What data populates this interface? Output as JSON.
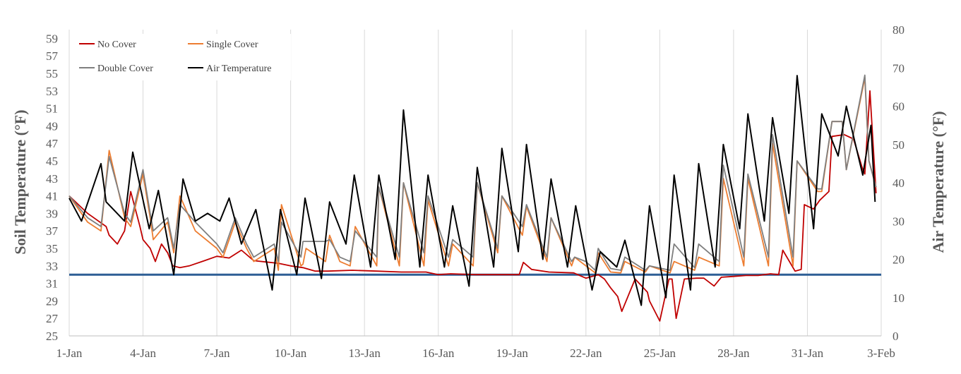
{
  "chart_data": {
    "type": "line",
    "title": "",
    "ylabel": "Soil Temperature (°F)",
    "y2label": "Air Temperature (°F)",
    "xlabel": "",
    "xlim": [
      "2024-01-01",
      "2024-02-03"
    ],
    "ylim": [
      25,
      60
    ],
    "y2lim": [
      0,
      80
    ],
    "x_tick_labels": [
      "1-Jan",
      "4-Jan",
      "7-Jan",
      "10-Jan",
      "13-Jan",
      "16-Jan",
      "19-Jan",
      "22-Jan",
      "25-Jan",
      "28-Jan",
      "31-Jan",
      "3-Feb"
    ],
    "y_tick_labels": [
      "25",
      "27",
      "29",
      "31",
      "33",
      "35",
      "37",
      "39",
      "41",
      "43",
      "45",
      "47",
      "49",
      "51",
      "53",
      "55",
      "57",
      "59"
    ],
    "y2_tick_labels": [
      "0",
      "10",
      "20",
      "30",
      "40",
      "50",
      "60",
      "70",
      "80"
    ],
    "grid": "vertical",
    "legend_position": "top-left",
    "reference_line": {
      "y": 32,
      "color": "#2e5f95"
    },
    "series": [
      {
        "name": "No Cover",
        "axis": "left",
        "color": "#c00000",
        "x": [
          "2024-01-01T00:00",
          "2024-01-01T18:00",
          "2024-01-02T12:00",
          "2024-01-02T15:00",
          "2024-01-02T23:00",
          "2024-01-03T06:00",
          "2024-01-03T12:00",
          "2024-01-03T21:00",
          "2024-01-04T00:00",
          "2024-01-04T07:00",
          "2024-01-04T12:00",
          "2024-01-04T18:00",
          "2024-01-05T00:00",
          "2024-01-05T05:00",
          "2024-01-05T12:00",
          "2024-01-05T21:00",
          "2024-01-06T12:00",
          "2024-01-07T00:00",
          "2024-01-07T12:00",
          "2024-01-08T00:00",
          "2024-01-08T12:00",
          "2024-01-09T12:00",
          "2024-01-10T00:00",
          "2024-01-10T12:00",
          "2024-01-11T00:00",
          "2024-01-11T12:00",
          "2024-01-12T12:00",
          "2024-01-13T12:00",
          "2024-01-14T12:00",
          "2024-01-15T12:00",
          "2024-01-16T00:00",
          "2024-01-16T12:00",
          "2024-01-17T12:00",
          "2024-01-18T12:00",
          "2024-01-19T07:00",
          "2024-01-19T11:00",
          "2024-01-19T19:00",
          "2024-01-20T12:00",
          "2024-01-21T12:00",
          "2024-01-22T00:00",
          "2024-01-22T12:00",
          "2024-01-22T18:00",
          "2024-01-23T00:00",
          "2024-01-23T07:00",
          "2024-01-23T11:00",
          "2024-01-24T00:00",
          "2024-01-24T12:00",
          "2024-01-24T14:00",
          "2024-01-25T00:00",
          "2024-01-25T09:00",
          "2024-01-25T12:00",
          "2024-01-25T16:00",
          "2024-01-26T00:00",
          "2024-01-26T12:00",
          "2024-01-26T19:00",
          "2024-01-27T05:00",
          "2024-01-27T12:00",
          "2024-01-28T00:00",
          "2024-01-28T12:00",
          "2024-01-29T00:00",
          "2024-01-29T12:00",
          "2024-01-29T20:00",
          "2024-01-30T00:00",
          "2024-01-30T12:00",
          "2024-01-30T18:00",
          "2024-01-30T21:00",
          "2024-01-31T06:00",
          "2024-01-31T12:00",
          "2024-01-31T21:00",
          "2024-02-01T00:00",
          "2024-02-01T12:00",
          "2024-02-01T21:00",
          "2024-02-02T06:00",
          "2024-02-02T08:00",
          "2024-02-02T13:00",
          "2024-02-02T19:00"
        ],
        "values": [
          41.0,
          39.0,
          37.5,
          36.5,
          35.5,
          37.0,
          41.5,
          37.5,
          36.0,
          35.0,
          33.5,
          35.5,
          34.5,
          33.0,
          32.8,
          33.0,
          33.6,
          34.1,
          33.9,
          34.8,
          33.6,
          33.3,
          33.0,
          32.8,
          32.4,
          32.4,
          32.5,
          32.4,
          32.3,
          32.3,
          32.0,
          32.1,
          32.0,
          32.0,
          32.0,
          33.4,
          32.6,
          32.3,
          32.2,
          31.6,
          32.0,
          31.5,
          30.5,
          29.5,
          27.8,
          31.5,
          30.0,
          29.0,
          26.7,
          31.5,
          31.5,
          27.0,
          31.5,
          31.6,
          31.6,
          30.7,
          31.7,
          31.8,
          31.9,
          31.9,
          32.1,
          32.0,
          34.8,
          32.4,
          32.6,
          40.0,
          39.5,
          40.5,
          41.5,
          47.8,
          48.0,
          47.5,
          44.0,
          43.5,
          53.0,
          41.3
        ]
      },
      {
        "name": "Single Cover",
        "axis": "left",
        "color": "#ed7d31",
        "x": [
          "2024-01-01T00:00",
          "2024-01-01T18:00",
          "2024-01-02T07:00",
          "2024-01-02T15:00",
          "2024-01-03T06:00",
          "2024-01-03T12:00",
          "2024-01-04T00:00",
          "2024-01-04T07:00",
          "2024-01-04T10:00",
          "2024-01-05T00:00",
          "2024-01-05T06:00",
          "2024-01-05T12:00",
          "2024-01-06T03:00",
          "2024-01-07T00:00",
          "2024-01-07T06:00",
          "2024-01-07T18:00",
          "2024-01-08T05:00",
          "2024-01-08T12:00",
          "2024-01-09T08:00",
          "2024-01-09T12:00",
          "2024-01-09T15:00",
          "2024-01-10T10:00",
          "2024-01-10T12:00",
          "2024-01-10T15:00",
          "2024-01-11T10:00",
          "2024-01-11T14:00",
          "2024-01-12T00:00",
          "2024-01-12T10:00",
          "2024-01-12T15:00",
          "2024-01-13T12:00",
          "2024-01-13T14:00",
          "2024-01-14T10:00",
          "2024-01-14T14:00",
          "2024-01-15T10:00",
          "2024-01-15T14:00",
          "2024-01-16T10:00",
          "2024-01-16T14:00",
          "2024-01-17T10:00",
          "2024-01-17T14:00",
          "2024-01-18T10:00",
          "2024-01-18T14:00",
          "2024-01-19T10:00",
          "2024-01-19T14:00",
          "2024-01-20T10:00",
          "2024-01-20T14:00",
          "2024-01-21T10:00",
          "2024-01-21T13:00",
          "2024-01-22T00:00",
          "2024-01-22T09:00",
          "2024-01-22T12:00",
          "2024-01-23T00:00",
          "2024-01-23T10:00",
          "2024-01-23T14:00",
          "2024-01-24T10:00",
          "2024-01-24T14:00",
          "2024-01-25T10:00",
          "2024-01-25T14:00",
          "2024-01-26T10:00",
          "2024-01-26T14:00",
          "2024-01-27T10:00",
          "2024-01-27T14:00",
          "2024-01-28T10:00",
          "2024-01-28T14:00",
          "2024-01-29T10:00",
          "2024-01-29T14:00",
          "2024-01-30T10:00",
          "2024-01-30T14:00",
          "2024-01-31T10:00",
          "2024-01-31T14:00",
          "2024-02-01T00:00",
          "2024-02-01T10:00",
          "2024-02-01T14:00",
          "2024-02-02T08:00",
          "2024-02-02T12:00",
          "2024-02-02T19:00"
        ],
        "values": [
          41.0,
          38.0,
          37.0,
          46.2,
          38.5,
          37.5,
          43.5,
          38.5,
          36.0,
          38.0,
          34.5,
          41.0,
          37.0,
          35.0,
          34.0,
          38.0,
          35.0,
          33.5,
          35.0,
          32.5,
          40.0,
          33.0,
          33.2,
          35.0,
          33.5,
          36.5,
          33.5,
          33.0,
          37.5,
          33.0,
          42.0,
          33.0,
          42.5,
          33.0,
          40.5,
          33.0,
          35.5,
          33.0,
          42.5,
          34.5,
          41.0,
          36.5,
          39.8,
          33.5,
          38.5,
          33.0,
          34.0,
          33.0,
          32.2,
          34.5,
          32.3,
          32.2,
          33.5,
          32.3,
          33.0,
          32.2,
          33.5,
          32.5,
          34.0,
          33.0,
          43.0,
          33.0,
          43.0,
          33.0,
          47.0,
          33.0,
          45.0,
          41.5,
          41.5,
          49.5,
          49.5,
          44.0,
          54.5,
          45.0,
          42.0
        ]
      },
      {
        "name": "Double Cover",
        "axis": "left",
        "color": "#7f7f7f",
        "x": [
          "2024-01-01T00:00",
          "2024-01-01T18:00",
          "2024-01-02T07:00",
          "2024-01-02T15:00",
          "2024-01-03T06:00",
          "2024-01-03T12:00",
          "2024-01-04T00:00",
          "2024-01-04T07:00",
          "2024-01-04T10:00",
          "2024-01-05T00:00",
          "2024-01-05T06:00",
          "2024-01-05T12:00",
          "2024-01-06T03:00",
          "2024-01-07T00:00",
          "2024-01-07T06:00",
          "2024-01-07T18:00",
          "2024-01-08T05:00",
          "2024-01-08T12:00",
          "2024-01-09T08:00",
          "2024-01-09T12:00",
          "2024-01-09T15:00",
          "2024-01-10T10:00",
          "2024-01-10T12:00",
          "2024-01-10T15:00",
          "2024-01-11T10:00",
          "2024-01-11T14:00",
          "2024-01-12T00:00",
          "2024-01-12T10:00",
          "2024-01-12T15:00",
          "2024-01-13T12:00",
          "2024-01-13T14:00",
          "2024-01-14T10:00",
          "2024-01-14T14:00",
          "2024-01-15T10:00",
          "2024-01-15T14:00",
          "2024-01-16T10:00",
          "2024-01-16T14:00",
          "2024-01-17T10:00",
          "2024-01-17T14:00",
          "2024-01-18T10:00",
          "2024-01-18T14:00",
          "2024-01-19T10:00",
          "2024-01-19T14:00",
          "2024-01-20T10:00",
          "2024-01-20T14:00",
          "2024-01-21T10:00",
          "2024-01-21T13:00",
          "2024-01-22T00:00",
          "2024-01-22T09:00",
          "2024-01-22T12:00",
          "2024-01-23T00:00",
          "2024-01-23T10:00",
          "2024-01-23T14:00",
          "2024-01-24T10:00",
          "2024-01-24T14:00",
          "2024-01-25T10:00",
          "2024-01-25T14:00",
          "2024-01-26T10:00",
          "2024-01-26T14:00",
          "2024-01-27T10:00",
          "2024-01-27T14:00",
          "2024-01-28T10:00",
          "2024-01-28T14:00",
          "2024-01-29T10:00",
          "2024-01-29T14:00",
          "2024-01-30T10:00",
          "2024-01-30T14:00",
          "2024-01-31T10:00",
          "2024-01-31T14:00",
          "2024-02-01T00:00",
          "2024-02-01T10:00",
          "2024-02-01T14:00",
          "2024-02-02T08:00",
          "2024-02-02T12:00",
          "2024-02-02T19:00"
        ],
        "values": [
          41.0,
          38.5,
          37.5,
          45.5,
          39.0,
          38.0,
          44.0,
          39.0,
          37.0,
          38.5,
          35.0,
          40.0,
          38.0,
          35.5,
          34.5,
          38.5,
          35.5,
          34.0,
          35.5,
          33.5,
          38.0,
          34.0,
          35.8,
          35.8,
          35.8,
          36.0,
          34.0,
          33.5,
          37.0,
          34.0,
          42.0,
          34.0,
          42.5,
          34.5,
          41.0,
          34.0,
          36.0,
          34.0,
          42.5,
          35.0,
          41.0,
          37.5,
          40.0,
          34.0,
          38.5,
          33.5,
          34.0,
          33.5,
          32.5,
          35.0,
          32.7,
          32.5,
          34.0,
          32.5,
          33.0,
          32.5,
          35.5,
          32.8,
          35.5,
          33.5,
          44.5,
          34.0,
          43.5,
          34.0,
          48.0,
          34.0,
          45.0,
          41.8,
          41.8,
          49.5,
          49.5,
          44.0,
          54.8,
          45.0,
          42.0
        ]
      },
      {
        "name": "Air Temperature",
        "axis": "right",
        "color": "#000000",
        "x": [
          "2024-01-01T00:00",
          "2024-01-01T12:00",
          "2024-01-02T07:00",
          "2024-01-02T12:00",
          "2024-01-03T06:00",
          "2024-01-03T14:00",
          "2024-01-04T06:00",
          "2024-01-04T15:00",
          "2024-01-05T06:00",
          "2024-01-05T15:00",
          "2024-01-06T03:00",
          "2024-01-06T15:00",
          "2024-01-07T03:00",
          "2024-01-07T12:00",
          "2024-01-08T00:00",
          "2024-01-08T14:00",
          "2024-01-09T06:00",
          "2024-01-09T14:00",
          "2024-01-10T06:00",
          "2024-01-10T14:00",
          "2024-01-11T06:00",
          "2024-01-11T14:00",
          "2024-01-12T06:00",
          "2024-01-12T14:00",
          "2024-01-13T06:00",
          "2024-01-13T14:00",
          "2024-01-14T06:00",
          "2024-01-14T14:00",
          "2024-01-15T06:00",
          "2024-01-15T14:00",
          "2024-01-16T06:00",
          "2024-01-16T14:00",
          "2024-01-17T06:00",
          "2024-01-17T14:00",
          "2024-01-18T06:00",
          "2024-01-18T14:00",
          "2024-01-19T06:00",
          "2024-01-19T14:00",
          "2024-01-20T06:00",
          "2024-01-20T14:00",
          "2024-01-21T06:00",
          "2024-01-21T14:00",
          "2024-01-22T06:00",
          "2024-01-22T14:00",
          "2024-01-23T06:00",
          "2024-01-23T14:00",
          "2024-01-24T06:00",
          "2024-01-24T14:00",
          "2024-01-25T06:00",
          "2024-01-25T14:00",
          "2024-01-26T06:00",
          "2024-01-26T14:00",
          "2024-01-27T06:00",
          "2024-01-27T14:00",
          "2024-01-28T06:00",
          "2024-01-28T14:00",
          "2024-01-29T06:00",
          "2024-01-29T14:00",
          "2024-01-30T06:00",
          "2024-01-30T14:00",
          "2024-01-31T06:00",
          "2024-01-31T14:00",
          "2024-02-01T06:00",
          "2024-02-01T14:00",
          "2024-02-02T06:00",
          "2024-02-02T14:00",
          "2024-02-02T18:00"
        ],
        "values": [
          36.0,
          30.0,
          45.0,
          35.0,
          30.0,
          48.0,
          28.0,
          38.0,
          16.0,
          41.0,
          30.0,
          32.0,
          30.0,
          36.0,
          24.0,
          33.0,
          12.0,
          33.0,
          16.0,
          36.0,
          15.0,
          35.0,
          24.0,
          42.0,
          18.0,
          42.0,
          20.0,
          59.0,
          18.0,
          42.0,
          18.0,
          34.0,
          13.0,
          44.0,
          18.0,
          49.0,
          22.0,
          50.0,
          20.0,
          41.0,
          18.0,
          34.0,
          12.0,
          22.0,
          18.0,
          25.0,
          8.0,
          34.0,
          10.0,
          42.0,
          12.0,
          45.0,
          18.0,
          50.0,
          28.0,
          58.0,
          30.0,
          57.0,
          32.0,
          68.0,
          28.0,
          58.0,
          47.0,
          60.0,
          42.0,
          55.0,
          35.0
        ]
      }
    ]
  }
}
